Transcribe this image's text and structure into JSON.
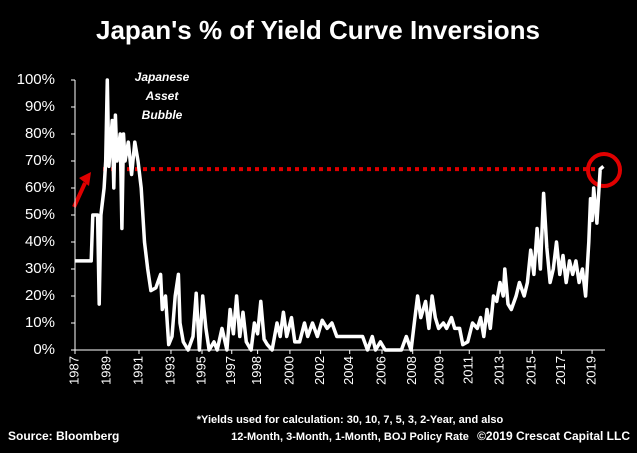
{
  "chart_data": {
    "type": "line",
    "title": "Japan's % of Yield Curve Inversions",
    "annotation": "Japanese Asset Bubble",
    "source": "Source: Bloomberg",
    "footnote": [
      "*Yields used for calculation: 30, 10, 7, 5, 3, 2-Year, and also",
      "12-Month, 3-Month, 1-Month, BOJ Policy Rate"
    ],
    "copyright": "©2019 Crescat Capital LLC",
    "color": "#ffffff",
    "reference_line": {
      "value": 67,
      "color": "#e00000"
    },
    "xlim": [
      1987,
      2019.8
    ],
    "ylim": [
      0,
      100
    ],
    "yticks": [
      {
        "value": 0,
        "label": "0%"
      },
      {
        "value": 10,
        "label": "10%"
      },
      {
        "value": 20,
        "label": "20%"
      },
      {
        "value": 30,
        "label": "30%"
      },
      {
        "value": 40,
        "label": "40%"
      },
      {
        "value": 50,
        "label": "50%"
      },
      {
        "value": 60,
        "label": "60%"
      },
      {
        "value": 70,
        "label": "70%"
      },
      {
        "value": 80,
        "label": "80%"
      },
      {
        "value": 90,
        "label": "90%"
      },
      {
        "value": 100,
        "label": "100%"
      }
    ],
    "xticks": [
      1987,
      {
        "value": 1988.98,
        "label": "1989"
      },
      {
        "value": 1990.96,
        "label": "1991"
      },
      {
        "value": 1992.94,
        "label": "1993"
      },
      {
        "value": 1994.86,
        "label": "1995"
      },
      {
        "value": 1996.7,
        "label": "1997"
      },
      {
        "value": 1998.3,
        "label": "1998"
      },
      {
        "value": 2000.3,
        "label": "2000"
      },
      {
        "value": 2002.2,
        "label": "2002"
      },
      2004,
      2006,
      {
        "value": 2007.9,
        "label": "2008"
      },
      {
        "value": 2009.6,
        "label": "2009"
      },
      {
        "value": 2011.4,
        "label": "2011"
      },
      {
        "value": 2013.3,
        "label": "2013"
      },
      {
        "value": 2015.3,
        "label": "2015"
      },
      {
        "value": 2017.1,
        "label": "2017"
      },
      2019
    ],
    "x": [
      1987.0,
      1988.0,
      1988.1,
      1988.4,
      1988.5,
      1988.6,
      1988.8,
      1988.9,
      1989.0,
      1989.1,
      1989.3,
      1989.4,
      1989.5,
      1989.6,
      1989.8,
      1989.9,
      1990.0,
      1990.1,
      1990.3,
      1990.5,
      1990.7,
      1990.9,
      1991.1,
      1991.3,
      1991.5,
      1991.7,
      1992.0,
      1992.3,
      1992.4,
      1992.6,
      1992.8,
      1993.0,
      1993.2,
      1993.4,
      1993.5,
      1993.7,
      1994.0,
      1994.3,
      1994.5,
      1994.7,
      1994.9,
      1995.1,
      1995.3,
      1995.6,
      1995.8,
      1996.1,
      1996.4,
      1996.6,
      1996.8,
      1997.0,
      1997.2,
      1997.4,
      1997.6,
      1997.9,
      1998.1,
      1998.3,
      1998.5,
      1998.7,
      1998.9,
      1999.2,
      1999.5,
      1999.7,
      1999.9,
      2000.1,
      2000.4,
      2000.6,
      2000.9,
      2001.2,
      2001.4,
      2001.7,
      2002.0,
      2002.3,
      2002.6,
      2002.9,
      2003.2,
      2003.5,
      2003.8,
      2004.1,
      2004.5,
      2004.8,
      2005.1,
      2005.4,
      2005.6,
      2005.9,
      2006.2,
      2006.6,
      2006.9,
      2007.2,
      2007.5,
      2007.8,
      2008.0,
      2008.2,
      2008.4,
      2008.7,
      2008.9,
      2009.1,
      2009.3,
      2009.5,
      2009.8,
      2010.0,
      2010.3,
      2010.5,
      2010.8,
      2011.0,
      2011.3,
      2011.6,
      2011.9,
      2012.1,
      2012.3,
      2012.5,
      2012.7,
      2012.9,
      2013.1,
      2013.3,
      2013.5,
      2013.6,
      2013.8,
      2014.0,
      2014.3,
      2014.5,
      2014.8,
      2015.0,
      2015.2,
      2015.4,
      2015.6,
      2015.8,
      2016.0,
      2016.2,
      2016.4,
      2016.6,
      2016.8,
      2017.0,
      2017.2,
      2017.4,
      2017.6,
      2017.8,
      2018.0,
      2018.2,
      2018.4,
      2018.6,
      2018.8,
      2018.9,
      2019.0,
      2019.1,
      2019.3,
      2019.5,
      2019.7
    ],
    "values": [
      33,
      33,
      50,
      50,
      17,
      50,
      60,
      70,
      100,
      68,
      85,
      60,
      87,
      70,
      80,
      45,
      80,
      70,
      77,
      65,
      77,
      70,
      60,
      40,
      30,
      22,
      23,
      28,
      15,
      20,
      2,
      5,
      20,
      28,
      10,
      3,
      0,
      5,
      21,
      0,
      20,
      8,
      0,
      3,
      0,
      8,
      0,
      15,
      6,
      20,
      5,
      14,
      3,
      0,
      10,
      6,
      18,
      4,
      2,
      0,
      10,
      5,
      14,
      5,
      12,
      3,
      3,
      10,
      5,
      10,
      5,
      11,
      8,
      10,
      5,
      5,
      5,
      5,
      5,
      5,
      0,
      5,
      0,
      3,
      0,
      0,
      0,
      0,
      5,
      0,
      10,
      20,
      12,
      18,
      8,
      20,
      12,
      8,
      10,
      8,
      12,
      8,
      8,
      2,
      3,
      10,
      8,
      12,
      5,
      15,
      8,
      20,
      18,
      25,
      20,
      30,
      17,
      15,
      20,
      25,
      20,
      25,
      37,
      28,
      45,
      30,
      58,
      38,
      25,
      30,
      40,
      28,
      35,
      25,
      33,
      28,
      33,
      25,
      30,
      20,
      40,
      56,
      48,
      60,
      47,
      67,
      68
    ]
  }
}
